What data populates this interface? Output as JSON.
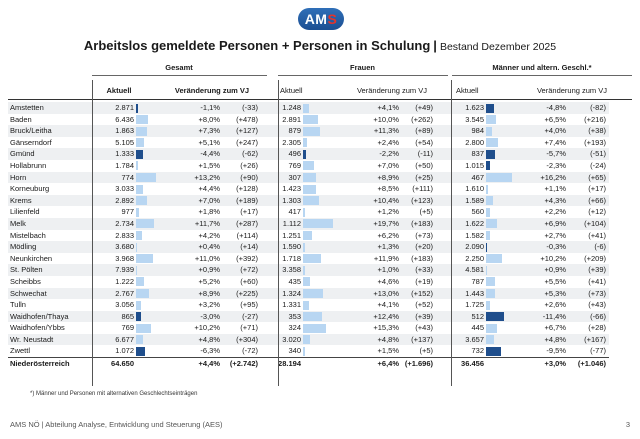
{
  "logo": {
    "left": "AM",
    "right": "S"
  },
  "title": {
    "main": "Arbeitslos gemeldete Personen + Personen in Schulung",
    "separator": "|",
    "subtitle": "Bestand Dezember 2025"
  },
  "groups": {
    "gesamt": "Gesamt",
    "frauen": "Frauen",
    "maenner": "Männer und altern. Geschl.*"
  },
  "columns": {
    "aktuell": "Aktuell",
    "veraenderung": "Veränderung zum VJ"
  },
  "rows": [
    {
      "name": "Amstetten",
      "g": [
        "2.871",
        "-1,1%",
        "(-33)"
      ],
      "gp": -1.1,
      "f": [
        "1.248",
        "+4,1%",
        "(+49)"
      ],
      "fp": 4.1,
      "m": [
        "1.623",
        "-4,8%",
        "(-82)"
      ],
      "mp": -4.8
    },
    {
      "name": "Baden",
      "g": [
        "6.436",
        "+8,0%",
        "(+478)"
      ],
      "gp": 8.0,
      "f": [
        "2.891",
        "+10,0%",
        "(+262)"
      ],
      "fp": 10.0,
      "m": [
        "3.545",
        "+6,5%",
        "(+216)"
      ],
      "mp": 6.5
    },
    {
      "name": "Bruck/Leitha",
      "g": [
        "1.863",
        "+7,3%",
        "(+127)"
      ],
      "gp": 7.3,
      "f": [
        "879",
        "+11,3%",
        "(+89)"
      ],
      "fp": 11.3,
      "m": [
        "984",
        "+4,0%",
        "(+38)"
      ],
      "mp": 4.0
    },
    {
      "name": "Gänserndorf",
      "g": [
        "5.105",
        "+5,1%",
        "(+247)"
      ],
      "gp": 5.1,
      "f": [
        "2.305",
        "+2,4%",
        "(+54)"
      ],
      "fp": 2.4,
      "m": [
        "2.800",
        "+7,4%",
        "(+193)"
      ],
      "mp": 7.4
    },
    {
      "name": "Gmünd",
      "g": [
        "1.333",
        "-4,4%",
        "(-62)"
      ],
      "gp": -4.4,
      "f": [
        "496",
        "-2,2%",
        "(-11)"
      ],
      "fp": -2.2,
      "m": [
        "837",
        "-5,7%",
        "(-51)"
      ],
      "mp": -5.7
    },
    {
      "name": "Hollabrunn",
      "g": [
        "1.784",
        "+1,5%",
        "(+26)"
      ],
      "gp": 1.5,
      "f": [
        "769",
        "+7,0%",
        "(+50)"
      ],
      "fp": 7.0,
      "m": [
        "1.015",
        "-2,3%",
        "(-24)"
      ],
      "mp": -2.3
    },
    {
      "name": "Horn",
      "g": [
        "774",
        "+13,2%",
        "(+90)"
      ],
      "gp": 13.2,
      "f": [
        "307",
        "+8,9%",
        "(+25)"
      ],
      "fp": 8.9,
      "m": [
        "467",
        "+16,2%",
        "(+65)"
      ],
      "mp": 16.2
    },
    {
      "name": "Korneuburg",
      "g": [
        "3.033",
        "+4,4%",
        "(+128)"
      ],
      "gp": 4.4,
      "f": [
        "1.423",
        "+8,5%",
        "(+111)"
      ],
      "fp": 8.5,
      "m": [
        "1.610",
        "+1,1%",
        "(+17)"
      ],
      "mp": 1.1
    },
    {
      "name": "Krems",
      "g": [
        "2.892",
        "+7,0%",
        "(+189)"
      ],
      "gp": 7.0,
      "f": [
        "1.303",
        "+10,4%",
        "(+123)"
      ],
      "fp": 10.4,
      "m": [
        "1.589",
        "+4,3%",
        "(+66)"
      ],
      "mp": 4.3
    },
    {
      "name": "Lilienfeld",
      "g": [
        "977",
        "+1,8%",
        "(+17)"
      ],
      "gp": 1.8,
      "f": [
        "417",
        "+1,2%",
        "(+5)"
      ],
      "fp": 1.2,
      "m": [
        "560",
        "+2,2%",
        "(+12)"
      ],
      "mp": 2.2
    },
    {
      "name": "Melk",
      "g": [
        "2.734",
        "+11,7%",
        "(+287)"
      ],
      "gp": 11.7,
      "f": [
        "1.112",
        "+19,7%",
        "(+183)"
      ],
      "fp": 19.7,
      "m": [
        "1.622",
        "+6,9%",
        "(+104)"
      ],
      "mp": 6.9
    },
    {
      "name": "Mistelbach",
      "g": [
        "2.833",
        "+4,2%",
        "(+114)"
      ],
      "gp": 4.2,
      "f": [
        "1.251",
        "+6,2%",
        "(+73)"
      ],
      "fp": 6.2,
      "m": [
        "1.582",
        "+2,7%",
        "(+41)"
      ],
      "mp": 2.7
    },
    {
      "name": "Mödling",
      "g": [
        "3.680",
        "+0,4%",
        "(+14)"
      ],
      "gp": 0.4,
      "f": [
        "1.590",
        "+1,3%",
        "(+20)"
      ],
      "fp": 1.3,
      "m": [
        "2.090",
        "-0,3%",
        "(-6)"
      ],
      "mp": -0.3
    },
    {
      "name": "Neunkirchen",
      "g": [
        "3.968",
        "+11,0%",
        "(+392)"
      ],
      "gp": 11.0,
      "f": [
        "1.718",
        "+11,9%",
        "(+183)"
      ],
      "fp": 11.9,
      "m": [
        "2.250",
        "+10,2%",
        "(+209)"
      ],
      "mp": 10.2
    },
    {
      "name": "St. Pölten",
      "g": [
        "7.939",
        "+0,9%",
        "(+72)"
      ],
      "gp": 0.9,
      "f": [
        "3.358",
        "+1,0%",
        "(+33)"
      ],
      "fp": 1.0,
      "m": [
        "4.581",
        "+0,9%",
        "(+39)"
      ],
      "mp": 0.9
    },
    {
      "name": "Scheibbs",
      "g": [
        "1.222",
        "+5,2%",
        "(+60)"
      ],
      "gp": 5.2,
      "f": [
        "435",
        "+4,6%",
        "(+19)"
      ],
      "fp": 4.6,
      "m": [
        "787",
        "+5,5%",
        "(+41)"
      ],
      "mp": 5.5
    },
    {
      "name": "Schwechat",
      "g": [
        "2.767",
        "+8,9%",
        "(+225)"
      ],
      "gp": 8.9,
      "f": [
        "1.324",
        "+13,0%",
        "(+152)"
      ],
      "fp": 13.0,
      "m": [
        "1.443",
        "+5,3%",
        "(+73)"
      ],
      "mp": 5.3
    },
    {
      "name": "Tulln",
      "g": [
        "3.056",
        "+3,2%",
        "(+95)"
      ],
      "gp": 3.2,
      "f": [
        "1.331",
        "+4,1%",
        "(+52)"
      ],
      "fp": 4.1,
      "m": [
        "1.725",
        "+2,6%",
        "(+43)"
      ],
      "mp": 2.6
    },
    {
      "name": "Waidhofen/Thaya",
      "g": [
        "865",
        "-3,0%",
        "(-27)"
      ],
      "gp": -3.0,
      "f": [
        "353",
        "+12,4%",
        "(+39)"
      ],
      "fp": 12.4,
      "m": [
        "512",
        "-11,4%",
        "(-66)"
      ],
      "mp": -11.4
    },
    {
      "name": "Waidhofen/Ybbs",
      "g": [
        "769",
        "+10,2%",
        "(+71)"
      ],
      "gp": 10.2,
      "f": [
        "324",
        "+15,3%",
        "(+43)"
      ],
      "fp": 15.3,
      "m": [
        "445",
        "+6,7%",
        "(+28)"
      ],
      "mp": 6.7
    },
    {
      "name": "Wr. Neustadt",
      "g": [
        "6.677",
        "+4,8%",
        "(+304)"
      ],
      "gp": 4.8,
      "f": [
        "3.020",
        "+4,8%",
        "(+137)"
      ],
      "fp": 4.8,
      "m": [
        "3.657",
        "+4,8%",
        "(+167)"
      ],
      "mp": 4.8
    },
    {
      "name": "Zwettl",
      "g": [
        "1.072",
        "-6,3%",
        "(-72)"
      ],
      "gp": -6.3,
      "f": [
        "340",
        "+1,5%",
        "(+5)"
      ],
      "fp": 1.5,
      "m": [
        "732",
        "-9,5%",
        "(-77)"
      ],
      "mp": -9.5
    }
  ],
  "total": {
    "name": "Niederösterreich",
    "g": [
      "64.650",
      "+4,4%",
      "(+2.742)"
    ],
    "f": [
      "28.194",
      "+6,4%",
      "(+1.696)"
    ],
    "m": [
      "36.456",
      "+3,0%",
      "(+1.046)"
    ]
  },
  "footnote": "*) Männer und Personen mit alternativen Geschlechtseinträgen",
  "footer": {
    "left": "AMS NÖ | Abteilung Analyse, Entwicklung und Steuerung (AES)",
    "page": "3"
  },
  "colors": {
    "positive_bar": "#b8d6f2",
    "negative_bar": "#1f4e8c"
  }
}
